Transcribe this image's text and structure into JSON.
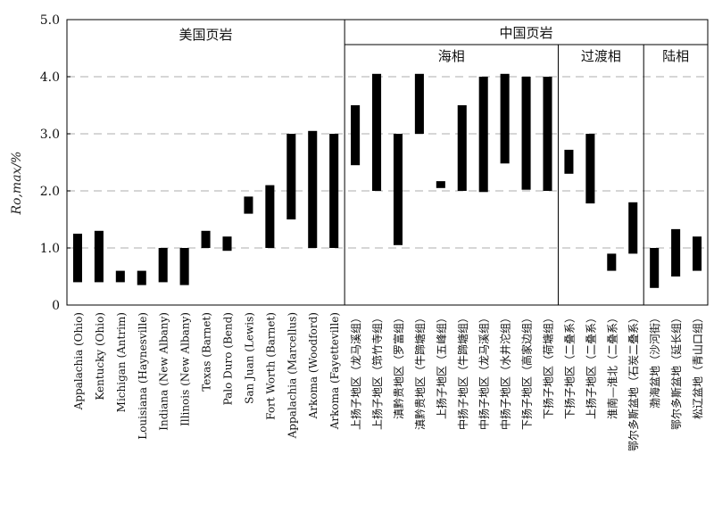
{
  "chart_data": {
    "type": "bar",
    "subtype": "floating-range",
    "title": "",
    "xlabel": "",
    "ylabel": "Ro,max/%",
    "ylim": [
      0,
      5
    ],
    "yticks": [
      "0",
      "1.0",
      "2.0",
      "3.0",
      "4.0",
      "5.0"
    ],
    "grid": "dashed-horizontal",
    "group_labels": {
      "us": "美国页岩",
      "china": "中国页岩",
      "marine": "海相",
      "transitional": "过渡相",
      "continental": "陆相"
    },
    "categories": [
      "Appalachia (Ohio)",
      "Kentucky (Ohio)",
      "Michigan (Antrim)",
      "Louisiana (Haynesville)",
      "Indiana (New Albany)",
      "Illinois (New Albany)",
      "Texas (Barnet)",
      "Palo Duro (Bend)",
      "San Juan (Lewis)",
      "Fort Worth (Barnet)",
      "Appalachia (Marcellus)",
      "Arkoma (Woodford)",
      "Arkoma (Fayetteville)",
      "上扬子地区（龙马溪组）",
      "上扬子地区（筇竹寺组）",
      "滇黔贵地区（罗富组）",
      "滇黔贵地区（牛蹄塘组）",
      "上扬子地区（五峰组）",
      "中扬子地区（牛蹄塘组）",
      "中扬子地区（龙马溪组）",
      "中扬子地区（水井沱组）",
      "下扬子地区（高家边组）",
      "下扬子地区（荷塘组）",
      "下扬子地区（二叠系）",
      "上扬子地区（二叠系）",
      "淮南—淮北（二叠系）",
      "鄂尔多斯盆地（石炭二叠系）",
      "渤海盆地（沙河街）",
      "鄂尔多斯盆地（延长组）",
      "松辽盆地（青山口组）"
    ],
    "series": [
      {
        "ranges": [
          [
            0.4,
            1.25
          ],
          [
            0.4,
            1.3
          ],
          [
            0.4,
            0.6
          ],
          [
            0.35,
            0.6
          ],
          [
            0.4,
            1.0
          ],
          [
            0.35,
            1.0
          ],
          [
            1.0,
            1.3
          ],
          [
            0.95,
            1.2
          ],
          [
            1.6,
            1.9
          ],
          [
            1.0,
            2.1
          ],
          [
            1.5,
            3.0
          ],
          [
            1.0,
            3.05
          ],
          [
            1.0,
            3.0
          ],
          [
            2.45,
            3.5
          ],
          [
            2.0,
            4.05
          ],
          [
            1.05,
            3.0
          ],
          [
            3.0,
            4.05
          ],
          [
            2.05,
            2.17
          ],
          [
            2.0,
            3.5
          ],
          [
            1.98,
            4.0
          ],
          [
            2.48,
            4.05
          ],
          [
            2.02,
            4.0
          ],
          [
            2.0,
            4.0
          ],
          [
            2.3,
            2.72
          ],
          [
            1.78,
            3.0
          ],
          [
            0.6,
            0.9
          ],
          [
            0.9,
            1.8
          ],
          [
            0.3,
            1.0
          ],
          [
            0.5,
            1.33
          ],
          [
            0.6,
            1.2
          ]
        ]
      }
    ]
  }
}
